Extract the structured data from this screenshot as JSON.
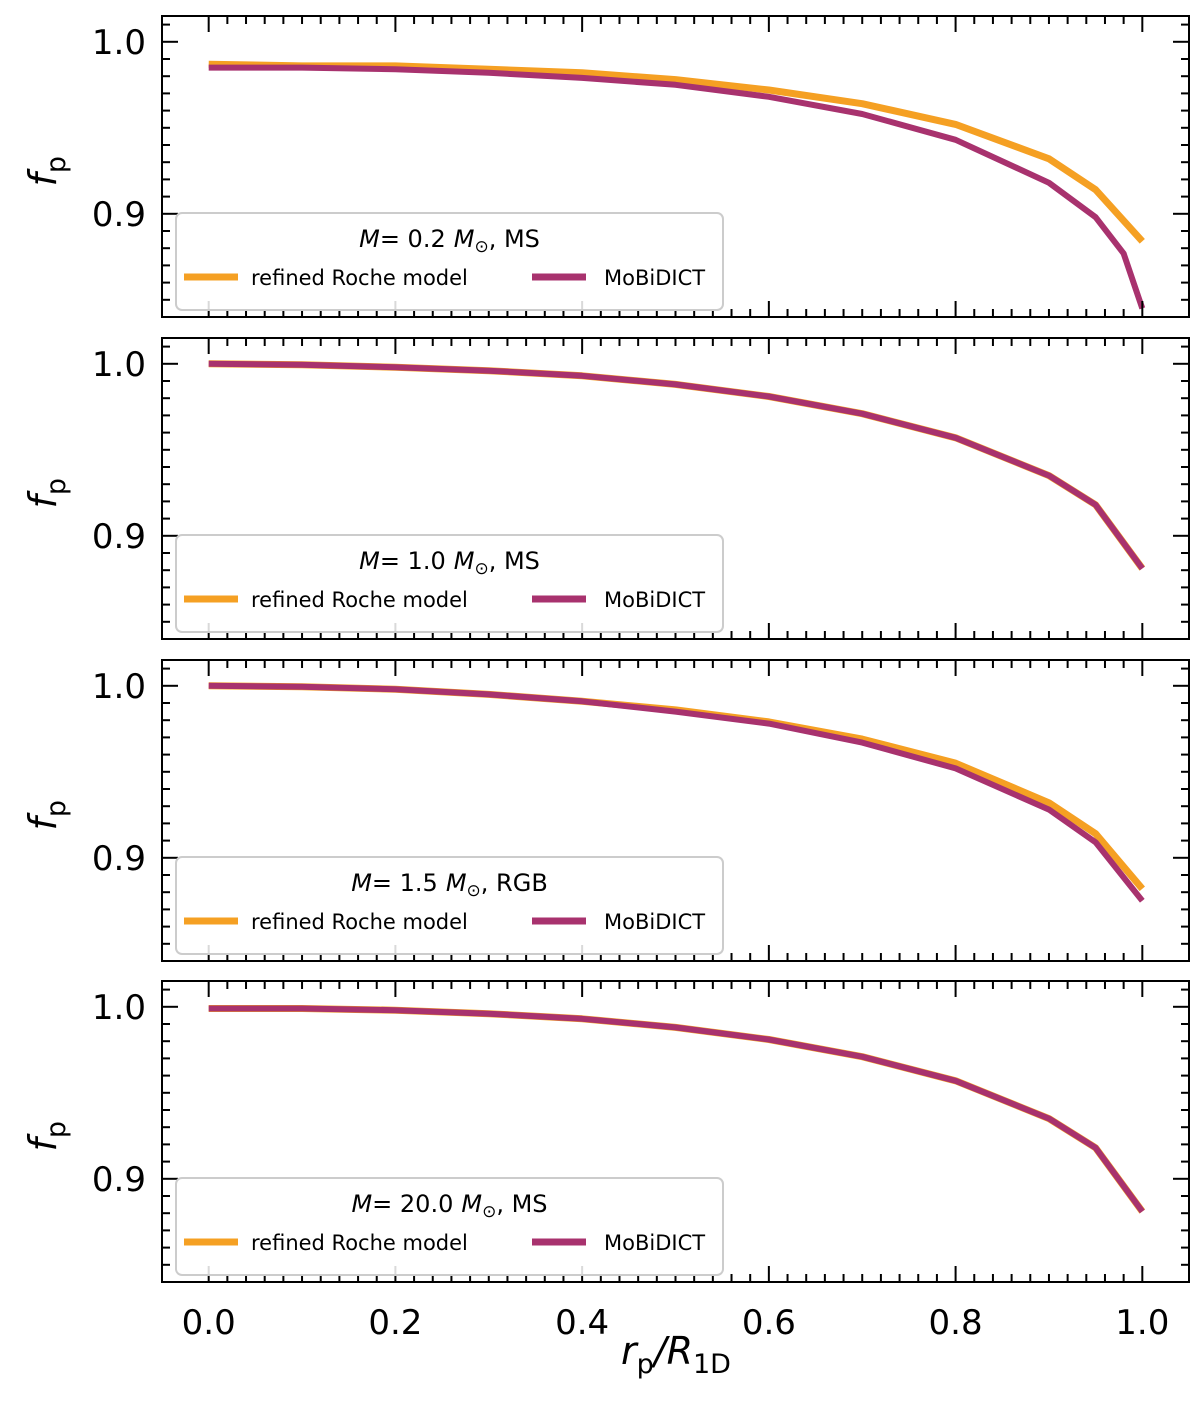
{
  "chart_data": [
    {
      "type": "line",
      "ylabel_main": "f",
      "ylabel_sub": "p",
      "xlim": [
        -0.05,
        1.05
      ],
      "ylim": [
        0.84,
        1.015
      ],
      "yticks": [
        0.9,
        1.0
      ],
      "ytick_labels": [
        "0.9",
        "1.0"
      ],
      "legend": {
        "title_prefix": "M",
        "title_value": "= 0.2",
        "title_unit": "M",
        "title_unit_sub": "⊙",
        "title_suffix": ", MS",
        "placement": "lower-left"
      },
      "series": [
        {
          "name": "refined Roche model",
          "color": "#f5a023",
          "x": [
            0.0,
            0.1,
            0.2,
            0.3,
            0.4,
            0.5,
            0.6,
            0.7,
            0.8,
            0.9,
            0.95,
            1.0
          ],
          "y": [
            0.987,
            0.986,
            0.986,
            0.984,
            0.982,
            0.978,
            0.972,
            0.964,
            0.952,
            0.932,
            0.914,
            0.884
          ]
        },
        {
          "name": "MoBiDICT",
          "color": "#a8326e",
          "x": [
            0.0,
            0.1,
            0.2,
            0.3,
            0.4,
            0.5,
            0.6,
            0.7,
            0.8,
            0.9,
            0.95,
            0.98,
            1.0
          ],
          "y": [
            0.985,
            0.985,
            0.984,
            0.982,
            0.979,
            0.975,
            0.968,
            0.958,
            0.943,
            0.918,
            0.898,
            0.877,
            0.845
          ]
        }
      ]
    },
    {
      "type": "line",
      "ylabel_main": "f",
      "ylabel_sub": "p",
      "xlim": [
        -0.05,
        1.05
      ],
      "ylim": [
        0.84,
        1.015
      ],
      "yticks": [
        0.9,
        1.0
      ],
      "ytick_labels": [
        "0.9",
        "1.0"
      ],
      "legend": {
        "title_prefix": "M",
        "title_value": "= 1.0",
        "title_unit": "M",
        "title_unit_sub": "⊙",
        "title_suffix": ", MS",
        "placement": "lower-left"
      },
      "series": [
        {
          "name": "refined Roche model",
          "color": "#f5a023",
          "x": [
            0.0,
            0.1,
            0.2,
            0.3,
            0.4,
            0.5,
            0.6,
            0.7,
            0.8,
            0.9,
            0.95,
            1.0
          ],
          "y": [
            1.0,
            0.9995,
            0.998,
            0.996,
            0.993,
            0.988,
            0.981,
            0.971,
            0.957,
            0.935,
            0.918,
            0.881
          ]
        },
        {
          "name": "MoBiDICT",
          "color": "#a8326e",
          "x": [
            0.0,
            0.1,
            0.2,
            0.3,
            0.4,
            0.5,
            0.6,
            0.7,
            0.8,
            0.9,
            0.95,
            1.0
          ],
          "y": [
            1.0,
            0.9995,
            0.998,
            0.996,
            0.993,
            0.988,
            0.981,
            0.971,
            0.957,
            0.935,
            0.918,
            0.881
          ]
        }
      ]
    },
    {
      "type": "line",
      "ylabel_main": "f",
      "ylabel_sub": "p",
      "xlim": [
        -0.05,
        1.05
      ],
      "ylim": [
        0.84,
        1.015
      ],
      "yticks": [
        0.9,
        1.0
      ],
      "ytick_labels": [
        "0.9",
        "1.0"
      ],
      "legend": {
        "title_prefix": "M",
        "title_value": "= 1.5",
        "title_unit": "M",
        "title_unit_sub": "⊙",
        "title_suffix": ", RGB",
        "placement": "lower-left"
      },
      "series": [
        {
          "name": "refined Roche model",
          "color": "#f5a023",
          "x": [
            0.0,
            0.1,
            0.2,
            0.3,
            0.4,
            0.5,
            0.6,
            0.7,
            0.8,
            0.9,
            0.95,
            1.0
          ],
          "y": [
            1.0,
            0.9995,
            0.998,
            0.995,
            0.991,
            0.986,
            0.979,
            0.969,
            0.955,
            0.932,
            0.914,
            0.882
          ]
        },
        {
          "name": "MoBiDICT",
          "color": "#a8326e",
          "x": [
            0.0,
            0.1,
            0.2,
            0.3,
            0.4,
            0.5,
            0.6,
            0.7,
            0.8,
            0.9,
            0.95,
            1.0
          ],
          "y": [
            1.0,
            0.9995,
            0.998,
            0.995,
            0.991,
            0.985,
            0.978,
            0.967,
            0.952,
            0.928,
            0.909,
            0.875
          ]
        }
      ]
    },
    {
      "type": "line",
      "ylabel_main": "f",
      "ylabel_sub": "p",
      "xlabel_main1": "r",
      "xlabel_sub1": "p",
      "xlabel_main2": "/R",
      "xlabel_sub2": "1D",
      "xlim": [
        -0.05,
        1.05
      ],
      "ylim": [
        0.84,
        1.015
      ],
      "yticks": [
        0.9,
        1.0
      ],
      "ytick_labels": [
        "0.9",
        "1.0"
      ],
      "xticks": [
        0.0,
        0.2,
        0.4,
        0.6,
        0.8,
        1.0
      ],
      "xtick_labels": [
        "0.0",
        "0.2",
        "0.4",
        "0.6",
        "0.8",
        "1.0"
      ],
      "legend": {
        "title_prefix": "M",
        "title_value": "= 20.0",
        "title_unit": "M",
        "title_unit_sub": "⊙",
        "title_suffix": ", MS",
        "placement": "lower-left"
      },
      "series": [
        {
          "name": "refined Roche model",
          "color": "#f5a023",
          "x": [
            0.0,
            0.1,
            0.2,
            0.3,
            0.4,
            0.5,
            0.6,
            0.7,
            0.8,
            0.9,
            0.95,
            1.0
          ],
          "y": [
            0.999,
            0.999,
            0.998,
            0.996,
            0.993,
            0.988,
            0.981,
            0.971,
            0.957,
            0.935,
            0.918,
            0.881
          ]
        },
        {
          "name": "MoBiDICT",
          "color": "#a8326e",
          "x": [
            0.0,
            0.1,
            0.2,
            0.3,
            0.4,
            0.5,
            0.6,
            0.7,
            0.8,
            0.9,
            0.95,
            1.0
          ],
          "y": [
            0.999,
            0.999,
            0.998,
            0.996,
            0.993,
            0.988,
            0.981,
            0.971,
            0.957,
            0.935,
            0.918,
            0.881
          ]
        }
      ]
    }
  ]
}
